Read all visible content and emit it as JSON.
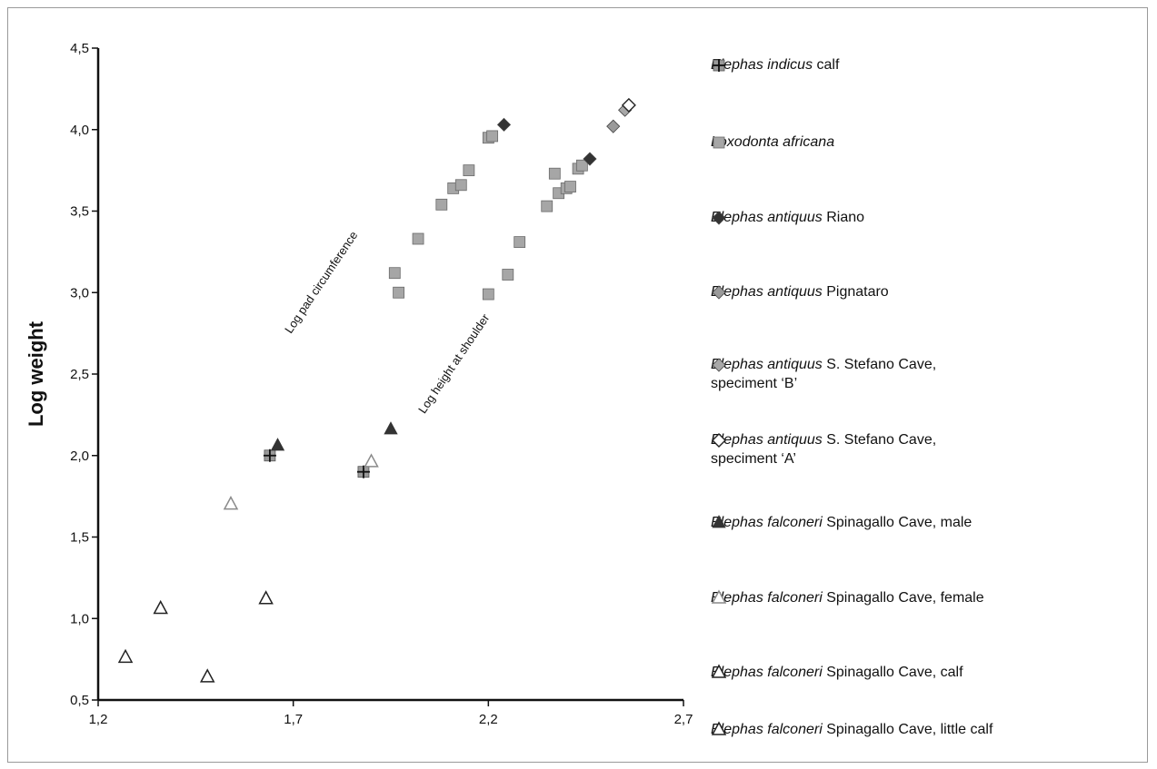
{
  "chart_data": {
    "type": "scatter",
    "ylabel": "Log weight",
    "xlim": [
      1.2,
      2.7
    ],
    "ylim": [
      0.5,
      4.5
    ],
    "xticks": [
      1.2,
      1.7,
      2.2,
      2.7
    ],
    "xtick_labels": [
      "1,2",
      "1,7",
      "2,2",
      "2,7"
    ],
    "yticks": [
      0.5,
      1.0,
      1.5,
      2.0,
      2.5,
      3.0,
      3.5,
      4.0,
      4.5
    ],
    "ytick_labels": [
      "0,5",
      "1,0",
      "1,5",
      "2,0",
      "2,5",
      "3,0",
      "3,5",
      "4,0",
      "4,5"
    ],
    "grid": false,
    "legend_position": "right",
    "annotations": [
      {
        "text": "Log pad circumference",
        "x": 1.78,
        "y": 3.05,
        "angle": -56
      },
      {
        "text": "Log height at shoulder",
        "x": 2.12,
        "y": 2.55,
        "angle": -56
      }
    ],
    "series": [
      {
        "name_italic": "Elephas indicus",
        "name_rest": " calf",
        "marker": "square-cross",
        "color": "#9a9a9a",
        "points": [
          [
            1.64,
            2.0
          ],
          [
            1.88,
            1.9
          ]
        ]
      },
      {
        "name_italic": "Loxodonta africana",
        "name_rest": "",
        "marker": "square",
        "color": "#a6a6a6",
        "points": [
          [
            1.97,
            3.0
          ],
          [
            1.96,
            3.12
          ],
          [
            2.02,
            3.33
          ],
          [
            2.08,
            3.54
          ],
          [
            2.11,
            3.64
          ],
          [
            2.13,
            3.66
          ],
          [
            2.15,
            3.75
          ],
          [
            2.2,
            3.95
          ],
          [
            2.21,
            3.96
          ],
          [
            2.2,
            2.99
          ],
          [
            2.25,
            3.11
          ],
          [
            2.28,
            3.31
          ],
          [
            2.35,
            3.53
          ],
          [
            2.37,
            3.73
          ],
          [
            2.38,
            3.61
          ],
          [
            2.4,
            3.64
          ],
          [
            2.41,
            3.65
          ],
          [
            2.43,
            3.76
          ],
          [
            2.44,
            3.78
          ]
        ]
      },
      {
        "name_italic": "Elephas antiquus",
        "name_rest": " Riano",
        "marker": "diamond",
        "color": "#333333",
        "points": [
          [
            2.24,
            4.03
          ],
          [
            2.46,
            3.82
          ]
        ]
      },
      {
        "name_italic": "Elephas antiquus",
        "name_rest": " Pignataro",
        "marker": "diamond",
        "color": "#9a9a9a",
        "points": [
          [
            2.52,
            4.02
          ]
        ]
      },
      {
        "name_italic": "Elephas antiquus",
        "name_rest": " S. Stefano Cave,\nspeciment ‘B’",
        "marker": "diamond",
        "color": "#a8a8a8",
        "points": [
          [
            2.55,
            4.12
          ]
        ]
      },
      {
        "name_italic": "Elephas antiquus",
        "name_rest": " S. Stefano Cave,\nspeciment ‘A’",
        "marker": "diamond-open",
        "color": "#222222",
        "points": [
          [
            2.56,
            4.15
          ]
        ]
      },
      {
        "name_italic": "Elephas falconeri",
        "name_rest": " Spinagallo Cave, male",
        "marker": "triangle",
        "color": "#333333",
        "points": [
          [
            1.66,
            2.06
          ],
          [
            1.95,
            2.16
          ]
        ]
      },
      {
        "name_italic": "Elephas falconeri",
        "name_rest": " Spinagallo Cave, female",
        "marker": "triangle-open",
        "color": "#8a8a8a",
        "points": [
          [
            1.54,
            1.7
          ],
          [
            1.9,
            1.96
          ]
        ]
      },
      {
        "name_italic": "Elephas falconeri",
        "name_rest": " Spinagallo Cave, calf",
        "marker": "triangle-open",
        "color": "#222222",
        "points": [
          [
            1.36,
            1.06
          ],
          [
            1.63,
            1.12
          ],
          [
            1.48,
            0.64
          ]
        ]
      },
      {
        "name_italic": "Elephas falconeri",
        "name_rest": " Spinagallo Cave, little calf",
        "marker": "triangle-open",
        "color": "#222222",
        "points": [
          [
            1.27,
            0.76
          ]
        ]
      }
    ]
  }
}
